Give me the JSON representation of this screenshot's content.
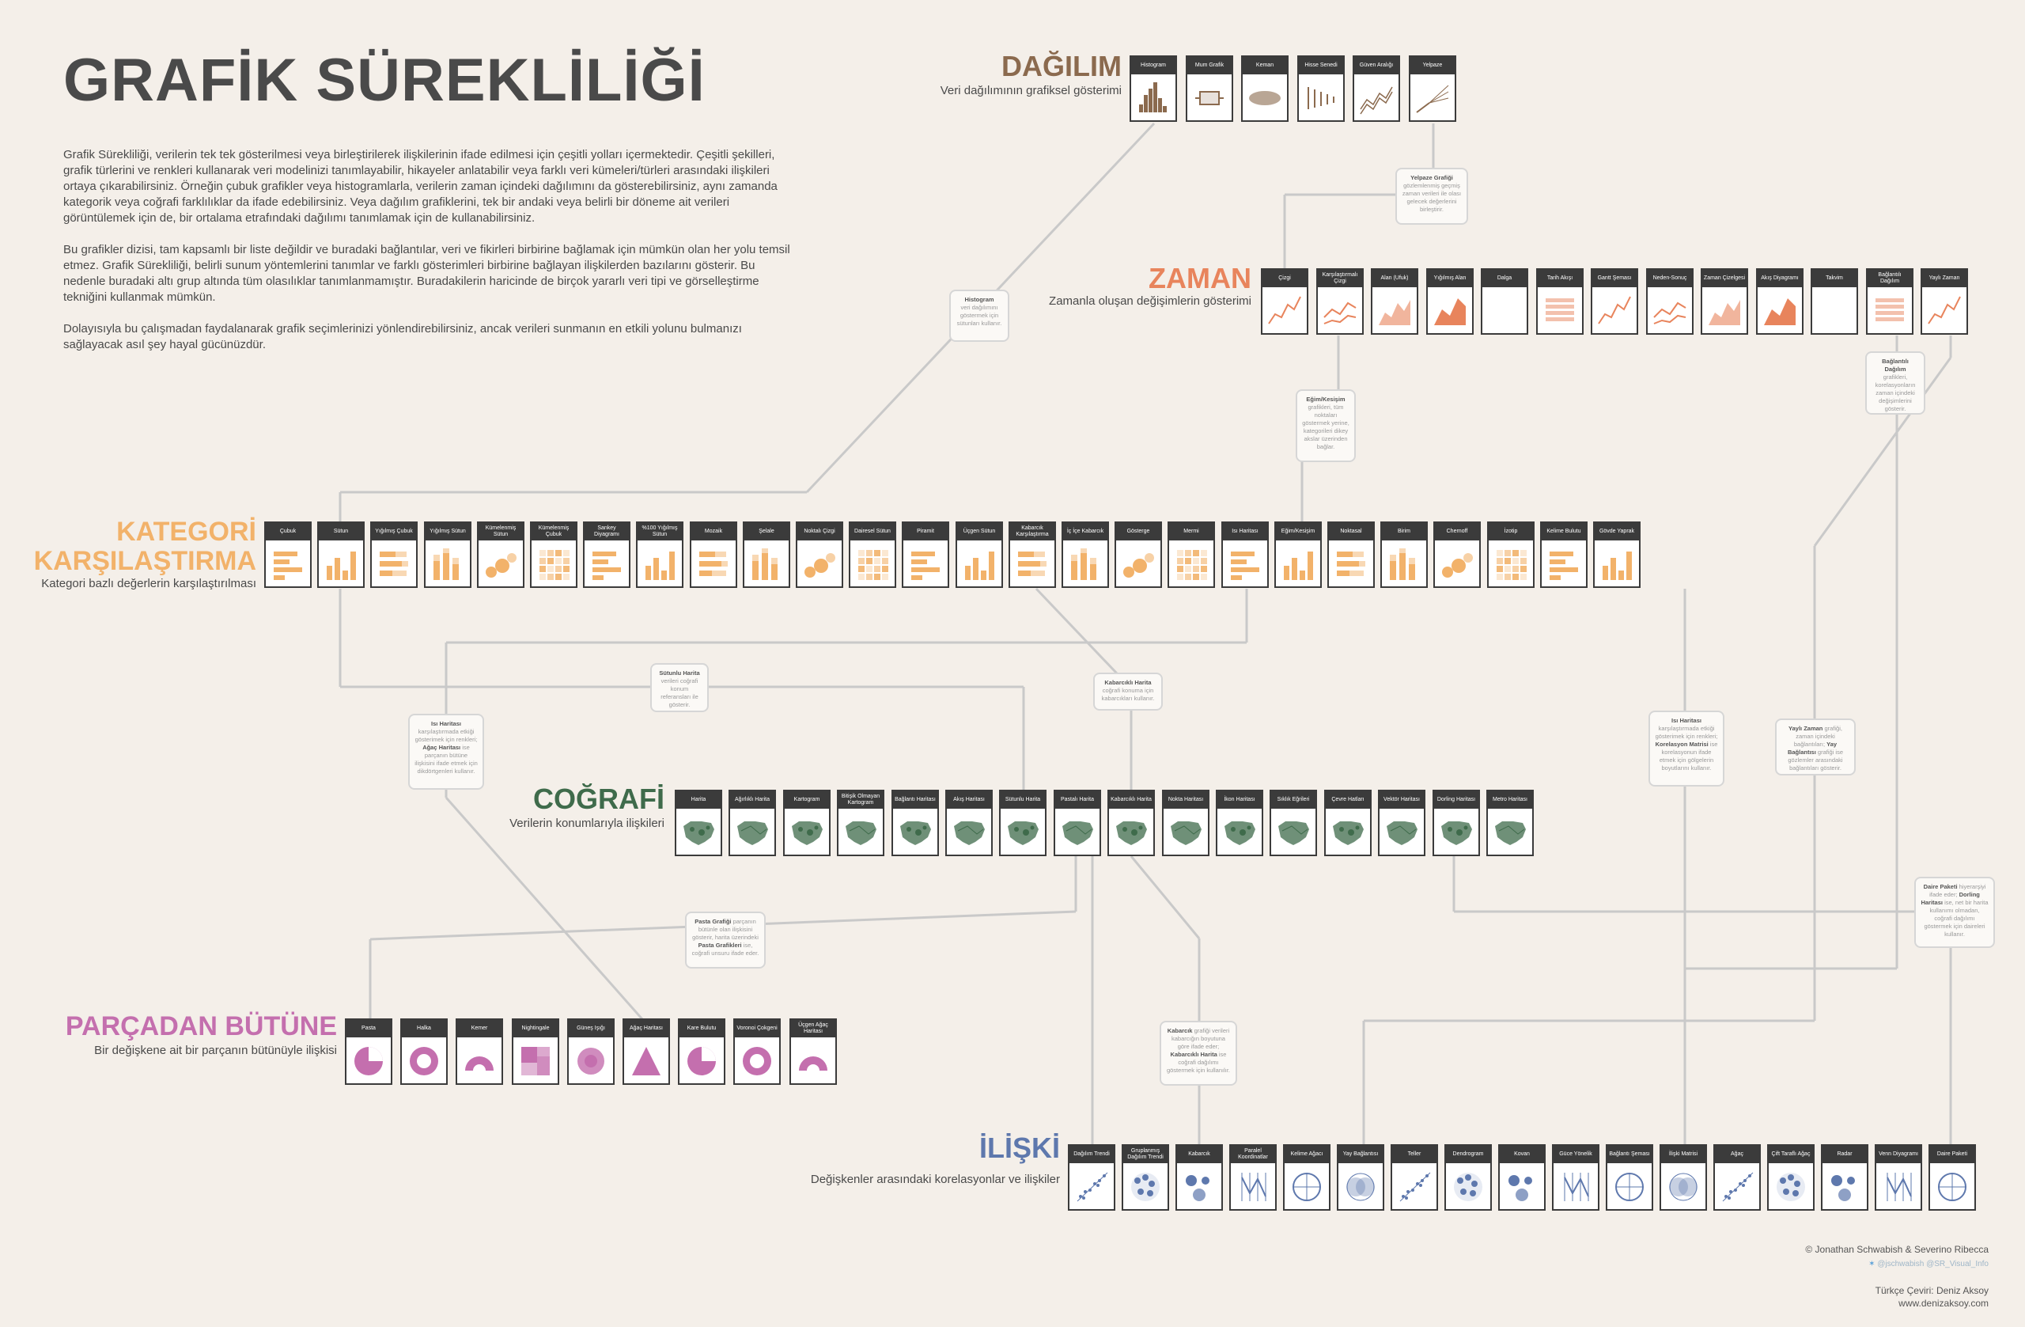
{
  "title": "GRAFİK SÜREKLİLİĞİ",
  "intro": [
    "Grafik Sürekliliği, verilerin tek tek gösterilmesi veya birleştirilerek ilişkilerinin ifade edilmesi için çeşitli yolları içermektedir. Çeşitli şekilleri, grafik türlerini ve renkleri kullanarak veri modelinizi tanımlayabilir, hikayeler anlatabilir veya farklı veri kümeleri/türleri arasındaki ilişkileri ortaya çıkarabilirsiniz. Örneğin çubuk grafikler veya histogramlarla, verilerin zaman içindeki dağılımını da gösterebilirsiniz, aynı zamanda kategorik veya coğrafi farklılıklar da ifade edebilirsiniz. Veya dağılım grafiklerini, tek bir andaki veya belirli bir döneme ait verileri görüntülemek için de, bir ortalama etrafındaki dağılımı tanımlamak için de kullanabilirsiniz.",
    "Bu grafikler dizisi, tam kapsamlı bir liste değildir ve buradaki bağlantılar, veri ve fikirleri birbirine bağlamak için mümkün olan her yolu temsil etmez. Grafik Sürekliliği, belirli sunum yöntemlerini tanımlar ve farklı gösterimleri birbirine bağlayan ilişkilerden bazılarını gösterir. Bu nedenle buradaki altı grup altında tüm olasılıklar tanımlanmamıştır. Buradakilerin haricinde de birçok yararlı veri tipi ve görselleştirme tekniğini kullanmak mümkün.",
    "Dolayısıyla bu çalışmadan faydalanarak grafik seçimlerinizi yönlendirebilirsiniz, ancak verileri sunmanın en etkili yolunu bulmanızı sağlayacak asıl şey hayal gücünüzdür."
  ],
  "groups": {
    "dagilim": {
      "title": "DAĞILIM",
      "subtitle": "Veri dağılımının grafiksel gösterimi",
      "color": "#8b6a4e",
      "items": [
        "Histogram",
        "Mum Grafik",
        "Keman",
        "Hisse Senedi",
        "Güven Aralığı",
        "Yelpaze"
      ]
    },
    "zaman": {
      "title": "ZAMAN",
      "subtitle": "Zamanla oluşan değişimlerin gösterimi",
      "color": "#e8845c",
      "items": [
        "Çizgi",
        "Karşılaştırmalı Çizgi",
        "Alan (Ufuk)",
        "Yığılmış Alan",
        "Dalga",
        "Tarih Akışı",
        "Gantt Şeması",
        "Neden-Sonuç",
        "Zaman Çizelgesi",
        "Akış Diyagramı",
        "Takvim",
        "Bağlantılı Dağılım",
        "Yaylı Zaman"
      ]
    },
    "kategori": {
      "title_line1": "KATEGORİ",
      "title_line2": "KARŞILAŞTIRMA",
      "subtitle": "Kategori bazlı değerlerin karşılaştırılması",
      "color": "#f2b26a",
      "items": [
        "Çubuk",
        "Sütun",
        "Yığılmış Çubuk",
        "Yığılmış Sütun",
        "Kümelenmiş Sütun",
        "Kümelenmiş Çubuk",
        "Sankey Diyagramı",
        "%100 Yığılmış Sütun",
        "Mozaik",
        "Şelale",
        "Noktalı Çizgi",
        "Dairesel Sütun",
        "Piramit",
        "Üçgen Sütun",
        "Kabarcık Karşılaştırma",
        "İç İçe Kabarcık",
        "Gösterge",
        "Mermi",
        "Isı Haritası",
        "Eğim/Kesişim",
        "Noktasal",
        "Birim",
        "Chernoff",
        "İzotip",
        "Kelime Bulutu",
        "Gövde Yaprak"
      ]
    },
    "cografi": {
      "title": "COĞRAFİ",
      "subtitle": "Verilerin konumlarıyla ilişkileri",
      "color": "#3f6b4b",
      "items": [
        "Harita",
        "Ağırlıklı Harita",
        "Kartogram",
        "Bitişik Olmayan Kartogram",
        "Bağlantı Haritası",
        "Akış Haritası",
        "Sütunlu Harita",
        "Pastalı Harita",
        "Kabarcıklı Harita",
        "Nokta Haritası",
        "İkon Haritası",
        "Sıklık Eğrileri",
        "Çevre Hatları",
        "Vektör Haritası",
        "Dorling Haritası",
        "Metro Haritası"
      ]
    },
    "parca": {
      "title": "PARÇADAN BÜTÜNE",
      "subtitle": "Bir değişkene ait bir parçanın bütünüyle ilişkisi",
      "color": "#c46fae",
      "items": [
        "Pasta",
        "Halka",
        "Kemer",
        "Nightingale",
        "Güneş Işığı",
        "Ağaç Haritası",
        "Kare Bulutu",
        "Voronoi Çokgeni",
        "Üçgen Ağaç Haritası"
      ]
    },
    "iliski": {
      "title": "İLİŞKİ",
      "subtitle": "Değişkenler arasındaki korelasyonlar ve ilişkiler",
      "color": "#5e78ad",
      "items": [
        "Dağılım Trendi",
        "Gruplanmış Dağılım Trendi",
        "Kabarcık",
        "Paralel Koordinatlar",
        "Kelime Ağacı",
        "Yay Bağlantısı",
        "Teller",
        "Dendrogram",
        "Kovan",
        "Güce Yönelik",
        "Bağlantı Şeması",
        "İlişki Matrisi",
        "Ağaç",
        "Çift Taraflı Ağaç",
        "Radar",
        "Venn Diyagramı",
        "Daire Paketi"
      ]
    }
  },
  "notes": {
    "yelpaze": {
      "head": "Yelpaze Grafiği",
      "text": "gözlemlenmiş geçmiş zaman verileri ile olası gelecek değerlerini birleştirir."
    },
    "histogram": {
      "head": "Histogram",
      "text": "veri dağılımını göstermek için sütunları kullanır."
    },
    "egim": {
      "head": "Eğim/Kesişim",
      "text": "grafikleri, tüm noktaları göstermek yerine, kategorileri dikey akslar üzerinden bağlar."
    },
    "baglantili": {
      "head": "Bağlantılı Dağılım",
      "text": "grafikleri, korelasyonların zaman içindeki değişimlerini gösterir."
    },
    "sutunlu": {
      "head": "Sütunlu Harita",
      "text": "verileri coğrafi konum referansları ile gösterir."
    },
    "kabarcikli": {
      "head": "Kabarcıklı Harita",
      "text": "coğrafi konuma için kabarcıkları kullanır."
    },
    "isi": {
      "head": "Isı Haritası",
      "text": "karşılaştırmada etkiği gösterimek için renkleri;",
      "head2": "Ağaç Haritası",
      "text2": "ise parçanın bütüne ilişkisini ifade etmek için dikdörtgenleri kullanır."
    },
    "isi2": {
      "head": "Isı Haritası",
      "text": "karşılaştırmada etkiği gösterimek için renkleri;",
      "head2": "Korelasyon Matrisi",
      "text2": "ise korelasyonun ifade etmek için gölgelerin boyutlarını kullanır."
    },
    "yayli": {
      "head": "Yaylı Zaman",
      "text": "grafiği, zaman içindeki bağlantıları;",
      "head2": "Yay Bağlantısı",
      "text2": "grafiği ise gözlemler arasındaki bağlantıları gösterir."
    },
    "pasta": {
      "head": "Pasta Grafiği",
      "text": "parçanın bütünle olan ilişkisini gösterir, harita üzerindeki",
      "head2": "Pasta Grafikleri",
      "text2": "ise, coğrafi unsuru ifade eder."
    },
    "daire": {
      "head": "Daire Paketi",
      "text": "hiyerarşiyi ifade eder;",
      "head2": "Dorling Haritası",
      "text2": "ise, net bir harita kullanımı olmadan, coğrafi dağılımı göstermek için daireleri kullanır."
    },
    "kabarcik": {
      "head": "Kabarcık",
      "text": "grafiği verileri kabarcığın boyutuna göre ifade eder;",
      "head2": "Kabarcıklı Harita",
      "text2": "ise coğrafi dağılımı göstermek için kullanılır."
    }
  },
  "credits": {
    "authors": "© Jonathan Schwabish & Severino Ribecca",
    "handles": "@jschwabish @SR_Visual_Info",
    "translation": "Türkçe Çeviri: Deniz Aksoy",
    "website": "www.denizaksoy.com"
  }
}
